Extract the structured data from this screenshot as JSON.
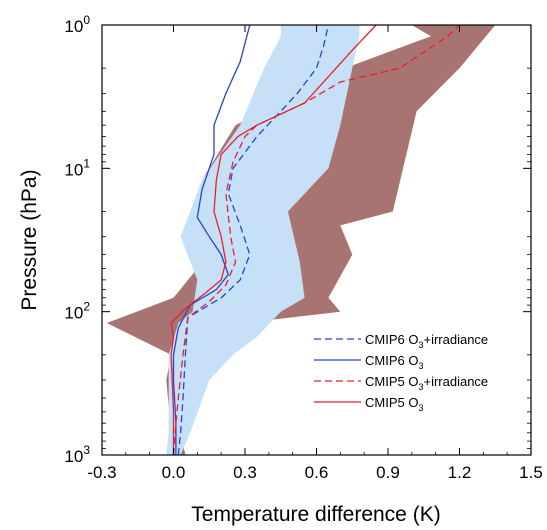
{
  "chart_data": {
    "type": "line",
    "xlabel": "Temperature difference (K)",
    "ylabel": "Pressure (hPa)",
    "xlim": [
      -0.3,
      1.5
    ],
    "ylim": [
      1000,
      1
    ],
    "y_scale": "log",
    "y_inverted": true,
    "grid": false,
    "legend_position": "bottom-right",
    "x_ticks": [
      -0.3,
      0.0,
      0.3,
      0.6,
      0.9,
      1.2,
      1.5
    ],
    "x_tick_labels": [
      "-0.3",
      "0.0",
      "0.3",
      "0.6",
      "0.9",
      "1.2",
      "1.5"
    ],
    "y_ticks": [
      1,
      10,
      100,
      1000
    ],
    "y_tick_labels": [
      {
        "base": "10",
        "exp": "0"
      },
      {
        "base": "10",
        "exp": "1"
      },
      {
        "base": "10",
        "exp": "2"
      },
      {
        "base": "10",
        "exp": "3"
      }
    ],
    "shaded_ranges": [
      {
        "color": "#a87472",
        "lower": [
          [
            0.0,
            1000
          ],
          [
            -0.01,
            700
          ],
          [
            -0.03,
            300
          ],
          [
            -0.01,
            200
          ],
          [
            -0.28,
            120
          ],
          [
            0.0,
            80
          ],
          [
            0.1,
            50
          ],
          [
            0.17,
            30
          ],
          [
            0.12,
            12
          ],
          [
            0.26,
            5
          ],
          [
            0.72,
            2
          ],
          [
            1.08,
            1.2
          ],
          [
            1.0,
            1
          ]
        ],
        "upper": [
          [
            0.05,
            1000
          ],
          [
            0.03,
            700
          ],
          [
            0.03,
            300
          ],
          [
            0.03,
            200
          ],
          [
            0.2,
            125
          ],
          [
            0.7,
            100
          ],
          [
            0.65,
            80
          ],
          [
            0.75,
            40
          ],
          [
            0.7,
            25
          ],
          [
            0.92,
            20
          ],
          [
            1.02,
            4
          ],
          [
            1.2,
            2
          ],
          [
            1.35,
            1
          ]
        ]
      },
      {
        "color": "#c6e1f7",
        "lower": [
          [
            -0.03,
            1000
          ],
          [
            -0.02,
            700
          ],
          [
            -0.02,
            300
          ],
          [
            -0.02,
            200
          ],
          [
            0.02,
            120
          ],
          [
            0.08,
            100
          ],
          [
            0.1,
            60
          ],
          [
            0.03,
            30
          ],
          [
            0.12,
            12
          ],
          [
            0.28,
            5
          ],
          [
            0.38,
            2
          ],
          [
            0.45,
            1.2
          ],
          [
            0.45,
            1
          ]
        ],
        "upper": [
          [
            0.03,
            1000
          ],
          [
            0.07,
            700
          ],
          [
            0.15,
            300
          ],
          [
            0.25,
            200
          ],
          [
            0.35,
            150
          ],
          [
            0.45,
            100
          ],
          [
            0.55,
            80
          ],
          [
            0.53,
            45
          ],
          [
            0.48,
            20
          ],
          [
            0.65,
            10
          ],
          [
            0.7,
            5
          ],
          [
            0.75,
            2
          ],
          [
            0.78,
            1.2
          ],
          [
            0.78,
            1
          ]
        ]
      }
    ],
    "series": [
      {
        "name": "CMIP6 O3+irradiance",
        "color": "#2b3fd6",
        "dash": "dashed",
        "points": [
          [
            0.02,
            1000
          ],
          [
            0.03,
            700
          ],
          [
            0.04,
            400
          ],
          [
            0.05,
            200
          ],
          [
            0.06,
            110
          ],
          [
            0.2,
            80
          ],
          [
            0.28,
            60
          ],
          [
            0.32,
            40
          ],
          [
            0.28,
            25
          ],
          [
            0.23,
            15
          ],
          [
            0.25,
            10
          ],
          [
            0.35,
            6
          ],
          [
            0.45,
            4
          ],
          [
            0.52,
            3
          ],
          [
            0.6,
            2
          ],
          [
            0.63,
            1.4
          ],
          [
            0.65,
            1
          ]
        ]
      },
      {
        "name": "CMIP6 O3",
        "color": "#2b3fd6",
        "dash": "solid",
        "points": [
          [
            0.01,
            1000
          ],
          [
            0.01,
            600
          ],
          [
            0.0,
            300
          ],
          [
            0.0,
            200
          ],
          [
            0.02,
            130
          ],
          [
            0.07,
            90
          ],
          [
            0.18,
            70
          ],
          [
            0.23,
            55
          ],
          [
            0.2,
            40
          ],
          [
            0.15,
            30
          ],
          [
            0.1,
            22
          ],
          [
            0.12,
            14
          ],
          [
            0.17,
            8
          ],
          [
            0.17,
            5
          ],
          [
            0.22,
            3
          ],
          [
            0.28,
            1.8
          ],
          [
            0.32,
            1
          ]
        ]
      },
      {
        "name": "CMIP5 O3+irradiance",
        "color": "#e8202a",
        "dash": "dashed",
        "points": [
          [
            0.0,
            1000
          ],
          [
            0.01,
            600
          ],
          [
            0.02,
            400
          ],
          [
            0.04,
            200
          ],
          [
            0.06,
            110
          ],
          [
            0.15,
            85
          ],
          [
            0.22,
            65
          ],
          [
            0.26,
            45
          ],
          [
            0.24,
            30
          ],
          [
            0.22,
            15
          ],
          [
            0.25,
            9
          ],
          [
            0.3,
            6
          ],
          [
            0.35,
            5
          ],
          [
            0.55,
            3.5
          ],
          [
            0.7,
            2.5
          ],
          [
            0.95,
            2
          ],
          [
            1.15,
            1.2
          ],
          [
            1.2,
            1
          ]
        ]
      },
      {
        "name": "CMIP5 O3",
        "color": "#e8202a",
        "dash": "solid",
        "points": [
          [
            0.0,
            1000
          ],
          [
            0.0,
            500
          ],
          [
            -0.01,
            200
          ],
          [
            0.0,
            150
          ],
          [
            -0.01,
            120
          ],
          [
            0.05,
            95
          ],
          [
            0.13,
            75
          ],
          [
            0.2,
            60
          ],
          [
            0.22,
            45
          ],
          [
            0.2,
            30
          ],
          [
            0.17,
            20
          ],
          [
            0.18,
            12
          ],
          [
            0.2,
            8
          ],
          [
            0.27,
            6
          ],
          [
            0.35,
            5
          ],
          [
            0.55,
            3.5
          ],
          [
            0.75,
            1.5
          ],
          [
            0.85,
            1
          ]
        ]
      }
    ],
    "legend": [
      {
        "base": "CMIP6 O",
        "sub": "3",
        "rest": "+irradiance"
      },
      {
        "base": "CMIP6 O",
        "sub": "3",
        "rest": ""
      },
      {
        "base": "CMIP5 O",
        "sub": "3",
        "rest": "+irradiance"
      },
      {
        "base": "CMIP5 O",
        "sub": "3",
        "rest": ""
      }
    ]
  }
}
